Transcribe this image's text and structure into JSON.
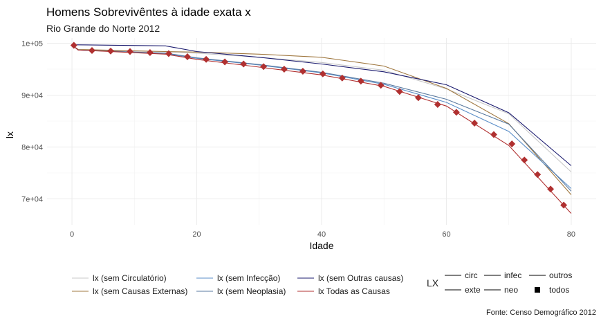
{
  "chart_data": {
    "type": "line",
    "title": "Homens Sobrevivêntes à idade exata x",
    "subtitle": "Rio Grande do Norte 2012",
    "xlabel": "Idade",
    "ylabel": "lx",
    "caption": "Fonte: Censo Demográfico 2012",
    "xlim": [
      -4,
      84
    ],
    "ylim": [
      65000,
      101000
    ],
    "x_ticks": [
      0,
      20,
      40,
      60,
      80
    ],
    "x_tick_labels": [
      "0",
      "20",
      "40",
      "60",
      "80"
    ],
    "y_ticks": [
      70000,
      80000,
      90000,
      100000
    ],
    "y_tick_labels": [
      "7e+04",
      "8e+04",
      "9e+04",
      "1e+05"
    ],
    "grid": true,
    "legend_position": "bottom",
    "series": [
      {
        "name": "lx (sem Circulatório)",
        "color": "#c8c8c8",
        "x": [
          0,
          1,
          15,
          20,
          30,
          40,
          50,
          60,
          70,
          80
        ],
        "y": [
          99650,
          98700,
          98350,
          98100,
          97300,
          96300,
          94800,
          91200,
          86400,
          75200
        ]
      },
      {
        "name": "lx (sem Causas Externas)",
        "color": "#a07840",
        "x": [
          0,
          1,
          15,
          20,
          30,
          40,
          50,
          60,
          70,
          80
        ],
        "y": [
          99650,
          98800,
          98400,
          98300,
          97900,
          97300,
          95600,
          91300,
          84500,
          70800
        ]
      },
      {
        "name": "lx (sem Infecção)",
        "color": "#5a8ec8",
        "x": [
          0,
          1,
          15,
          20,
          30,
          40,
          50,
          60,
          70,
          80
        ],
        "y": [
          99650,
          98700,
          98000,
          97100,
          95800,
          94300,
          92100,
          88600,
          83000,
          72000
        ]
      },
      {
        "name": "lx (sem Neoplasia)",
        "color": "#5a7aa0",
        "x": [
          0,
          1,
          15,
          20,
          30,
          40,
          50,
          60,
          70,
          80
        ],
        "y": [
          99650,
          98700,
          98100,
          97200,
          95900,
          94400,
          92300,
          89200,
          84400,
          71500
        ]
      },
      {
        "name": "lx (sem Outras causas)",
        "color": "#1a1a6e",
        "x": [
          0,
          1,
          15,
          20,
          30,
          40,
          50,
          60,
          70,
          80
        ],
        "y": [
          99700,
          99700,
          99500,
          98400,
          97300,
          96000,
          94500,
          92000,
          86600,
          76400
        ]
      },
      {
        "name": "lx Todas as Causas",
        "color": "#b03030",
        "x": [
          0,
          1,
          15,
          20,
          30,
          40,
          50,
          60,
          70,
          80
        ],
        "y": [
          99650,
          98700,
          97900,
          96900,
          95400,
          93900,
          91700,
          87900,
          80300,
          67200
        ]
      }
    ],
    "points": {
      "name": "todos",
      "color": "#b03030",
      "x": [
        0.3,
        3.2,
        6.2,
        9.3,
        12.5,
        15.5,
        18.5,
        21.5,
        24.5,
        27.5,
        30.7,
        34,
        37,
        40.2,
        43.3,
        46.3,
        49.5,
        52.5,
        55.5,
        58.6,
        61.6,
        64.5,
        67.6,
        70.5,
        72.5,
        74.6,
        76.7,
        78.8
      ],
      "y": [
        99600,
        98600,
        98500,
        98400,
        98200,
        98000,
        97400,
        96900,
        96400,
        96000,
        95500,
        95000,
        94600,
        94100,
        93300,
        92700,
        91900,
        90700,
        89500,
        88200,
        86700,
        84600,
        82400,
        80600,
        77500,
        74700,
        71900,
        68800
      ]
    },
    "legend_left": [
      "lx (sem Circulatório)",
      "lx (sem Causas Externas)",
      "lx (sem Infecção)",
      "lx (sem Neoplasia)",
      "lx (sem Outras causas)",
      "lx Todas as Causas"
    ],
    "legend_lx": {
      "title": "LX",
      "entries": [
        {
          "label": "circ",
          "marker": "line"
        },
        {
          "label": "exte",
          "marker": "line"
        },
        {
          "label": "infec",
          "marker": "line"
        },
        {
          "label": "neo",
          "marker": "line"
        },
        {
          "label": "outros",
          "marker": "line"
        },
        {
          "label": "todos",
          "marker": "square"
        }
      ]
    }
  }
}
